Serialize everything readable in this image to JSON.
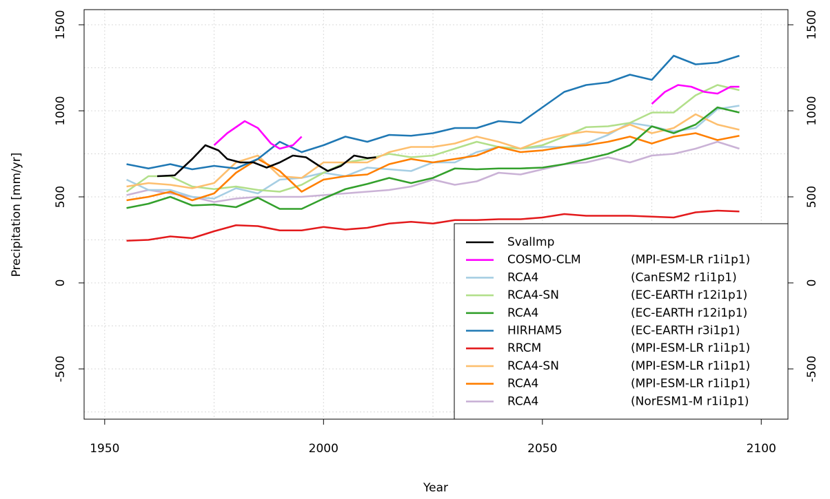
{
  "chart_data": {
    "type": "line",
    "xlabel": "Year",
    "ylabel": "Precipitation [mm/yr]",
    "xlim": [
      1945.3,
      2106.1
    ],
    "ylim": [
      -792,
      1588
    ],
    "xticks": [
      1950,
      2000,
      2050,
      2100
    ],
    "yticks": [
      -500,
      0,
      500,
      1000,
      1500
    ],
    "xgrid": [
      1950,
      1975,
      2000,
      2025,
      2050,
      2075,
      2100
    ],
    "ygrid": [
      -750,
      -500,
      -250,
      0,
      250,
      500,
      750,
      1000,
      1250,
      1500
    ],
    "grid": true,
    "right_axis": true,
    "legend": "bottom-right",
    "x": [
      1955,
      1960,
      1965,
      1970,
      1975,
      1980,
      1985,
      1990,
      1995,
      2000,
      2005,
      2010,
      2015,
      2020,
      2025,
      2030,
      2035,
      2040,
      2045,
      2050,
      2055,
      2060,
      2065,
      2070,
      2075,
      2080,
      2085,
      2090,
      2095
    ],
    "series": [
      {
        "name": "SvalImp",
        "color": "#000000",
        "x": [
          1962,
          1966,
          1970,
          1973,
          1976,
          1978,
          1981,
          1984,
          1987,
          1990,
          1993,
          1996,
          1999,
          2001,
          2004,
          2007,
          2010,
          2012
        ],
        "values": [
          620,
          625,
          720,
          800,
          770,
          720,
          700,
          700,
          670,
          700,
          740,
          730,
          680,
          650,
          680,
          740,
          725,
          730
        ]
      },
      {
        "name": "COSMO-CLM",
        "driver": "(MPI-ESM-LR r1i1p1)",
        "color": "#ff00ff",
        "x": [
          1975,
          1978,
          1982,
          1985,
          1988,
          1990,
          1993,
          1995,
          2035,
          2075,
          2078,
          2081,
          2084,
          2087,
          2090,
          2093,
          2095
        ],
        "values": [
          800,
          870,
          940,
          900,
          810,
          780,
          800,
          850,
          null,
          1040,
          1110,
          1150,
          1140,
          1110,
          1100,
          1140,
          1140
        ]
      },
      {
        "name": "RCA4",
        "driver": "(CanESM2 r1i1p1)",
        "color": "#a6cee3",
        "values": [
          600,
          540,
          540,
          500,
          490,
          550,
          520,
          600,
          610,
          640,
          620,
          670,
          660,
          650,
          700,
          700,
          760,
          790,
          780,
          790,
          790,
          810,
          860,
          930,
          910,
          880,
          900,
          1010,
          1030
        ]
      },
      {
        "name": "RCA4-SN",
        "driver": "(EC-EARTH r12i1p1)",
        "color": "#b2df8a",
        "values": [
          530,
          620,
          620,
          560,
          545,
          560,
          540,
          530,
          570,
          640,
          700,
          720,
          750,
          730,
          740,
          780,
          820,
          790,
          780,
          800,
          850,
          905,
          910,
          930,
          990,
          990,
          1090,
          1150,
          1120
        ]
      },
      {
        "name": "RCA4",
        "driver": "(EC-EARTH r12i1p1)",
        "color": "#33a02c",
        "values": [
          435,
          460,
          500,
          450,
          455,
          440,
          495,
          430,
          430,
          490,
          545,
          575,
          610,
          580,
          610,
          665,
          660,
          665,
          665,
          670,
          690,
          720,
          750,
          800,
          910,
          870,
          920,
          1020,
          990
        ]
      },
      {
        "name": "HIRHAM5",
        "driver": "(EC-EARTH r3i1p1)",
        "color": "#1f78b4",
        "values": [
          690,
          665,
          690,
          660,
          680,
          665,
          720,
          820,
          760,
          800,
          850,
          820,
          860,
          855,
          870,
          900,
          900,
          940,
          930,
          1020,
          1110,
          1150,
          1165,
          1210,
          1180,
          1320,
          1270,
          1280,
          1320
        ]
      },
      {
        "name": "RRCM",
        "driver": "(MPI-ESM-LR r1i1p1)",
        "color": "#e31a1c",
        "values": [
          245,
          250,
          270,
          260,
          300,
          335,
          330,
          305,
          305,
          325,
          310,
          320,
          345,
          355,
          345,
          365,
          365,
          370,
          370,
          380,
          400,
          390,
          390,
          390,
          385,
          380,
          410,
          420,
          415
        ]
      },
      {
        "name": "RCA4-SN",
        "driver": "(MPI-ESM-LR r1i1p1)",
        "color": "#fdbf6f",
        "values": [
          560,
          580,
          570,
          550,
          580,
          700,
          740,
          620,
          610,
          700,
          700,
          700,
          760,
          790,
          790,
          810,
          850,
          820,
          780,
          830,
          860,
          880,
          870,
          920,
          870,
          900,
          980,
          920,
          890
        ]
      },
      {
        "name": "RCA4",
        "driver": "(MPI-ESM-LR r1i1p1)",
        "color": "#ff7f00",
        "values": [
          480,
          500,
          530,
          480,
          520,
          640,
          720,
          650,
          530,
          600,
          620,
          630,
          690,
          720,
          700,
          720,
          740,
          790,
          760,
          770,
          790,
          800,
          820,
          850,
          810,
          850,
          870,
          830,
          855
        ]
      },
      {
        "name": "RCA4",
        "driver": "(NorESM1-M r1i1p1)",
        "color": "#cab2d6",
        "values": [
          510,
          540,
          520,
          500,
          470,
          490,
          500,
          500,
          500,
          510,
          520,
          530,
          540,
          560,
          600,
          570,
          590,
          640,
          630,
          660,
          690,
          700,
          730,
          700,
          740,
          750,
          780,
          820,
          780
        ]
      }
    ]
  }
}
